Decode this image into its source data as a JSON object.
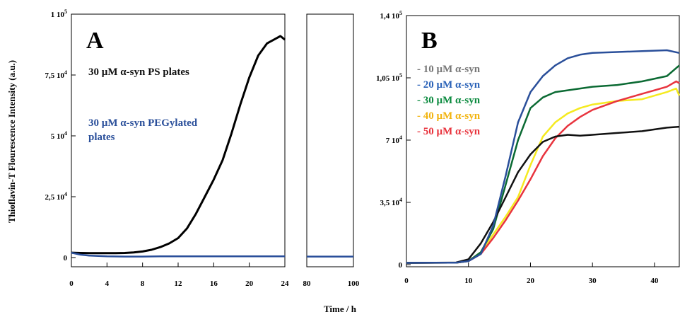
{
  "figure": {
    "ylabel": "Thioflavin-T Flourescence Intensity (a.u.)",
    "xlabel": "Time / h"
  },
  "chart_data": [
    {
      "panel": "A",
      "type": "line",
      "title": "",
      "xlabel": "Time / h",
      "ylabel": "Thioflavin-T Flourescence Intensity (a.u.)",
      "ylim": [
        0,
        100000
      ],
      "xlim_segments": [
        [
          0,
          24
        ],
        [
          80,
          100
        ]
      ],
      "x_ticks": [
        "0",
        "4",
        "8",
        "12",
        "16",
        "20",
        "24",
        "80",
        "100"
      ],
      "y_ticks": [
        {
          "value": 0,
          "mantissa": "0",
          "exponent": ""
        },
        {
          "value": 25000,
          "mantissa": "2,5 10",
          "exponent": "4"
        },
        {
          "value": 50000,
          "mantissa": "5 10",
          "exponent": "4"
        },
        {
          "value": 75000,
          "mantissa": "7,5 10",
          "exponent": "4"
        },
        {
          "value": 100000,
          "mantissa": "1 10",
          "exponent": "5"
        }
      ],
      "annotations": [
        {
          "text": "30 µM α-syn PS plates",
          "color": "#111111"
        },
        {
          "text": "30 µM α-syn PEGylated",
          "color": "#2a4f9a"
        },
        {
          "text": "plates",
          "color": "#2a4f9a"
        }
      ],
      "series": [
        {
          "color": "#000000",
          "x": [
            0,
            1,
            2,
            3,
            4,
            5,
            6,
            7,
            8,
            9,
            10,
            11,
            12,
            13,
            14,
            15,
            16,
            17,
            18,
            19,
            20,
            21,
            22,
            23,
            23.5,
            24
          ],
          "y": [
            2000,
            1900,
            1800,
            1800,
            1800,
            1800,
            1900,
            2100,
            2500,
            3200,
            4300,
            5800,
            8000,
            12000,
            18000,
            25000,
            32000,
            40000,
            51000,
            63000,
            74000,
            83000,
            88000,
            90000,
            91000,
            89500
          ]
        },
        {
          "color": "#2a4f9a",
          "x": [
            0,
            1,
            2,
            4,
            6,
            8,
            10,
            12,
            16,
            20,
            24,
            80,
            90,
            100
          ],
          "y": [
            2000,
            1200,
            800,
            500,
            400,
            400,
            500,
            500,
            500,
            500,
            500,
            400,
            400,
            400
          ]
        }
      ]
    },
    {
      "panel": "B",
      "type": "line",
      "title": "",
      "xlabel": "Time / h",
      "ylim": [
        0,
        140000
      ],
      "xlim": [
        0,
        44
      ],
      "x_ticks": [
        "0",
        "10",
        "20",
        "30",
        "40"
      ],
      "y_ticks": [
        {
          "value": 0,
          "mantissa": "0",
          "exponent": ""
        },
        {
          "value": 35000,
          "mantissa": "3,5 10",
          "exponent": "4"
        },
        {
          "value": 70000,
          "mantissa": "7 10",
          "exponent": "4"
        },
        {
          "value": 105000,
          "mantissa": "1,05 10",
          "exponent": "5"
        },
        {
          "value": 140000,
          "mantissa": "1,4 10",
          "exponent": "5"
        }
      ],
      "legend_placement": "top-left",
      "series": [
        {
          "name": "- 10 µM α-syn",
          "label_color": "#777777",
          "color": "#111111",
          "x": [
            0,
            8,
            10,
            12,
            14,
            16,
            18,
            20,
            22,
            24,
            26,
            28,
            30,
            34,
            38,
            42,
            44
          ],
          "y": [
            1000,
            1200,
            3000,
            12000,
            24000,
            38000,
            52000,
            62000,
            69000,
            72000,
            73000,
            72500,
            73000,
            74000,
            75000,
            77000,
            77500
          ]
        },
        {
          "name": "- 20 µM α-syn",
          "label_color": "#2a62b8",
          "color": "#2a4f9a",
          "x": [
            0,
            8,
            10,
            12,
            14,
            16,
            18,
            20,
            22,
            24,
            26,
            28,
            30,
            34,
            38,
            42,
            44
          ],
          "y": [
            1000,
            1100,
            2000,
            6000,
            22000,
            50000,
            80000,
            97000,
            106000,
            112000,
            116000,
            118000,
            119000,
            119500,
            120000,
            120500,
            119000
          ]
        },
        {
          "name": "- 30 µM α-syn",
          "label_color": "#0a8a3e",
          "color": "#0b6a33",
          "x": [
            0,
            8,
            10,
            12,
            14,
            16,
            18,
            20,
            22,
            24,
            26,
            28,
            30,
            34,
            38,
            42,
            44
          ],
          "y": [
            1000,
            1100,
            2000,
            7000,
            20000,
            45000,
            70000,
            88000,
            94000,
            97000,
            98000,
            99000,
            100000,
            101000,
            103000,
            106000,
            112000
          ]
        },
        {
          "name": "- 40 µM α-syn",
          "label_color": "#f2b40f",
          "color": "#f5ea20",
          "x": [
            0,
            8,
            10,
            12,
            14,
            16,
            18,
            20,
            22,
            24,
            26,
            28,
            30,
            34,
            38,
            42,
            43.5,
            44
          ],
          "y": [
            1000,
            1100,
            2000,
            7000,
            17000,
            27000,
            38000,
            56000,
            72000,
            80000,
            85000,
            88000,
            90000,
            92000,
            93000,
            97000,
            99000,
            95000
          ]
        },
        {
          "name": "- 50 µM α-syn",
          "label_color": "#e8323c",
          "color": "#e8343e",
          "x": [
            0,
            8,
            10,
            12,
            14,
            16,
            18,
            20,
            22,
            24,
            26,
            28,
            30,
            34,
            38,
            42,
            43.5,
            44
          ],
          "y": [
            1000,
            1100,
            2000,
            6000,
            15000,
            25000,
            36000,
            48000,
            61000,
            71000,
            78000,
            83000,
            87000,
            92000,
            96000,
            100000,
            103000,
            102000
          ]
        }
      ]
    }
  ]
}
